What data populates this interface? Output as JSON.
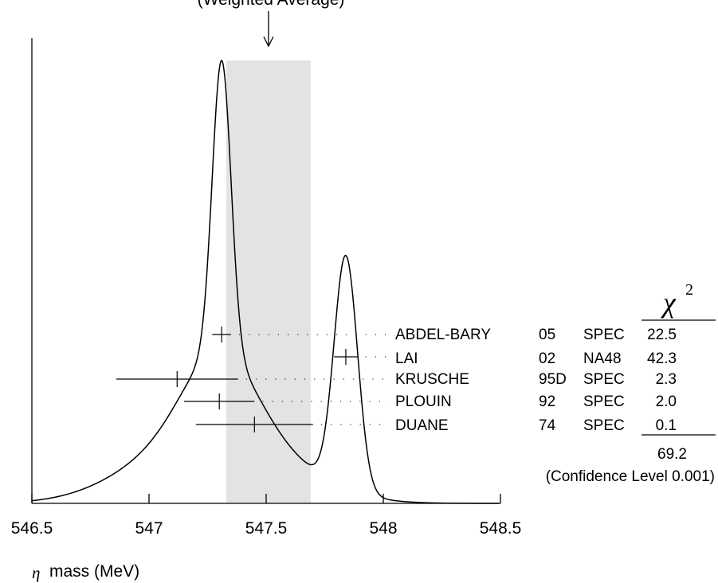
{
  "chart_data": {
    "type": "ideogram",
    "title": "(Weighted Average)",
    "xlabel_symbol": "η",
    "xlabel": "mass (MeV)",
    "xlim": [
      546.5,
      548.5
    ],
    "x_ticks": [
      "546.5",
      "547",
      "547.5",
      "548",
      "548.5"
    ],
    "weighted_average": 547.51,
    "weighted_average_band": [
      547.33,
      547.69
    ],
    "chi2_header_symbol": "χ",
    "chi2_header_exponent": "2",
    "measurements": [
      {
        "author": "ABDEL-BARY",
        "year": "05",
        "technique": "SPEC",
        "chi2": "22.5",
        "value": 547.31,
        "error": 0.04
      },
      {
        "author": "LAI",
        "year": "02",
        "technique": "NA48",
        "chi2": "42.3",
        "value": 547.84,
        "error": 0.05
      },
      {
        "author": "KRUSCHE",
        "year": "95D",
        "technique": "SPEC",
        "chi2": "2.3",
        "value": 547.12,
        "error": 0.26
      },
      {
        "author": "PLOUIN",
        "year": "92",
        "technique": "SPEC",
        "chi2": "2.0",
        "value": 547.3,
        "error": 0.15
      },
      {
        "author": "DUANE",
        "year": "74",
        "technique": "SPEC",
        "chi2": "0.1",
        "value": 547.45,
        "error": 0.25
      }
    ],
    "chi2_total": "69.2",
    "confidence_level_text": "(Confidence Level  0.001)"
  },
  "colors": {
    "band": "#e3e3e3",
    "ink": "#000000"
  }
}
